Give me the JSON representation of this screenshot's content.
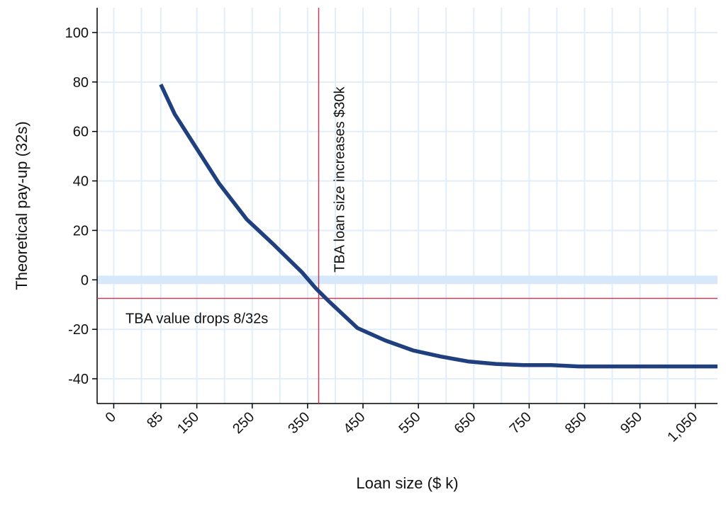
{
  "chart_data": {
    "type": "line",
    "title": "",
    "xlabel": "Loan size ($ k)",
    "ylabel": "Theoretical pay-up (32s)",
    "xlim": [
      -30,
      1090
    ],
    "ylim": [
      -50,
      110
    ],
    "x_ticks": [
      0,
      85,
      150,
      250,
      350,
      450,
      550,
      650,
      750,
      850,
      950,
      1050
    ],
    "x_tick_labels": [
      "0",
      "85",
      "150",
      "250",
      "350",
      "450",
      "550",
      "650",
      "750",
      "850",
      "950",
      "1,050"
    ],
    "y_ticks": [
      100,
      80,
      60,
      40,
      20,
      0,
      -20,
      -40
    ],
    "y_tick_labels": [
      "100",
      "80",
      "60",
      "40",
      "20",
      "0",
      "-20",
      "-40"
    ],
    "x_minor_grid": [
      50,
      200,
      300,
      400,
      500,
      600,
      700,
      800,
      900,
      1000
    ],
    "grid": true,
    "legend": "none",
    "series": [
      {
        "color": "#1f3f7f",
        "x": [
          85,
          110,
          150,
          190,
          240,
          290,
          340,
          365,
          390,
          440,
          490,
          540,
          590,
          640,
          690,
          740,
          790,
          840,
          890,
          940,
          990,
          1040,
          1090
        ],
        "y": [
          79,
          67,
          53,
          39,
          24.5,
          14,
          3,
          -3.5,
          -9,
          -19.5,
          -24.5,
          -28.5,
          -31,
          -33,
          -34,
          -34.5,
          -34.5,
          -35,
          -35,
          -35,
          -35,
          -35,
          -35
        ]
      }
    ],
    "zero_band": {
      "y": 0,
      "color": "#d6e8fa"
    },
    "reference_lines": [
      {
        "orientation": "vertical",
        "value": 370,
        "color": "#c0405a",
        "label": "TBA loan size increases $30k"
      },
      {
        "orientation": "horizontal",
        "value": -7.5,
        "color": "#c0405a",
        "label": "TBA value drops 8/32s"
      }
    ],
    "colors": {
      "grid": "#e1eef9",
      "axis": "#000000"
    }
  }
}
